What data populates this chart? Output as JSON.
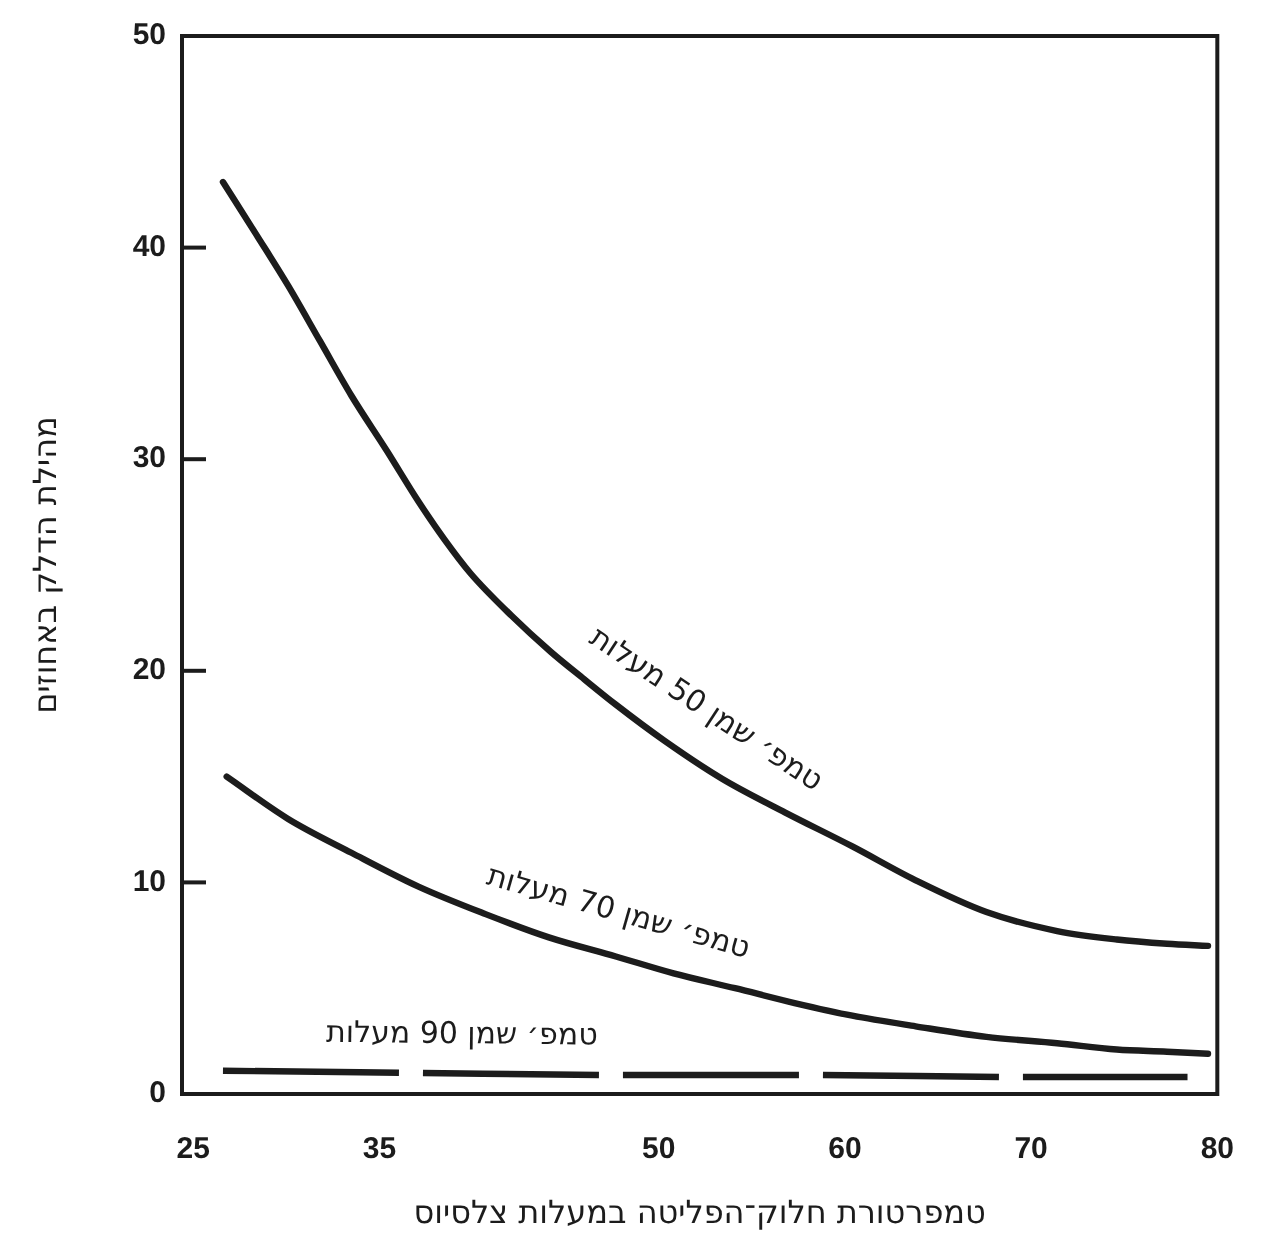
{
  "chart_data": {
    "type": "line",
    "xlabel": "טמפרטורת חלוק־הפליטה במעלות צלסיוס",
    "ylabel": "מהילת הדלק באחוזים",
    "xlim": [
      24.4,
      80
    ],
    "xticks": [
      25,
      35,
      50,
      60,
      70,
      80
    ],
    "ylim": [
      0,
      50
    ],
    "yticks": [
      0,
      10,
      20,
      30,
      40,
      50
    ],
    "grid": false,
    "legend": false,
    "marker": "none",
    "line_style": "solid",
    "series": [
      {
        "name": "טמפ׳ שמן 50 מעלות",
        "color": "#1c1c1c",
        "x": [
          26.6,
          28.4,
          30.1,
          31.8,
          33.5,
          35.4,
          37.1,
          38.5,
          39.9,
          42.1,
          44.2,
          46,
          47.7,
          50.3,
          53.4,
          56.8,
          60.4,
          63.8,
          67.6,
          71.4,
          74.6,
          77.3,
          79.5
        ],
        "values": [
          43.1,
          40.6,
          38.2,
          35.6,
          33,
          30.4,
          28,
          26.2,
          24.6,
          22.6,
          20.9,
          19.6,
          18.4,
          16.7,
          14.9,
          13.3,
          11.7,
          10.1,
          8.6,
          7.7,
          7.3,
          7.1,
          7
        ]
      },
      {
        "name": "טמפ׳ שמן 70 מעלות",
        "color": "#1c1c1c",
        "x": [
          26.8,
          30.1,
          33.5,
          37.1,
          40.7,
          44.1,
          47.7,
          50.8,
          54.1,
          57.3,
          60.4,
          63.8,
          67.6,
          71.4,
          74.6,
          77.3,
          79.5
        ],
        "values": [
          15,
          13,
          11.4,
          9.8,
          8.5,
          7.4,
          6.5,
          5.7,
          5,
          4.3,
          3.7,
          3.2,
          2.7,
          2.4,
          2.1,
          2,
          1.9
        ]
      },
      {
        "name": "טמפ׳ שמן 90 מעלות",
        "color": "#1c1c1c",
        "line_style": "dashed",
        "x": [
          26.6,
          36.8,
          47.6,
          58.4,
          69.2,
          78.4
        ],
        "values": [
          1.1,
          1,
          0.9,
          0.9,
          0.8,
          0.8
        ]
      }
    ]
  }
}
